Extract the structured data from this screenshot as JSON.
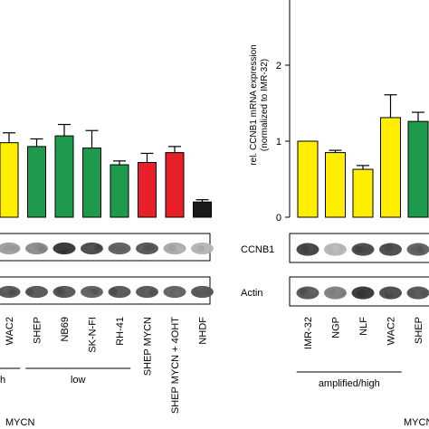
{
  "colors": {
    "amplified": "#ffee00",
    "low": "#1e9a4c",
    "induced": "#e8202a",
    "control": "#1a1a1a"
  },
  "chart_data": [
    {
      "type": "bar",
      "panel": "left",
      "categories": [
        "WAC2",
        "SHEP",
        "NB69",
        "SK-N-FI",
        "RH-41",
        "SHEP MYCN",
        "SHEP MYCN + 4OHT",
        "NHDF"
      ],
      "values": [
        0.98,
        0.93,
        1.07,
        0.91,
        0.69,
        0.72,
        0.85,
        0.2
      ],
      "errors": [
        0.13,
        0.1,
        0.15,
        0.23,
        0.05,
        0.12,
        0.08,
        0.03
      ],
      "bar_colors": [
        "amplified",
        "low",
        "low",
        "low",
        "low",
        "induced",
        "induced",
        "control"
      ],
      "ylim": [
        0,
        2.8
      ],
      "blots": [
        "",
        ""
      ],
      "groups": [
        {
          "label": "h",
          "from": -1,
          "to": 0
        },
        {
          "label": "low",
          "from": 1,
          "to": 4
        }
      ],
      "axis_title": "MYCN"
    },
    {
      "type": "bar",
      "panel": "right",
      "categories": [
        "IMR-32",
        "NGP",
        "NLF",
        "WAC2",
        "SHEP"
      ],
      "values": [
        1.0,
        0.85,
        0.63,
        1.31,
        1.26
      ],
      "errors": [
        0.0,
        0.03,
        0.05,
        0.3,
        0.12
      ],
      "bar_colors": [
        "amplified",
        "amplified",
        "amplified",
        "amplified",
        "low"
      ],
      "ylabel": "rel. CCNB1 mRNA expression\n(normalized to IMR-32)",
      "yticks": [
        0,
        1,
        2
      ],
      "ylim": [
        0,
        2.8
      ],
      "blots": [
        "CCNB1",
        "Actin"
      ],
      "groups": [
        {
          "label": "amplified/high",
          "from": 0,
          "to": 3
        }
      ],
      "axis_title": "MYCN"
    }
  ]
}
